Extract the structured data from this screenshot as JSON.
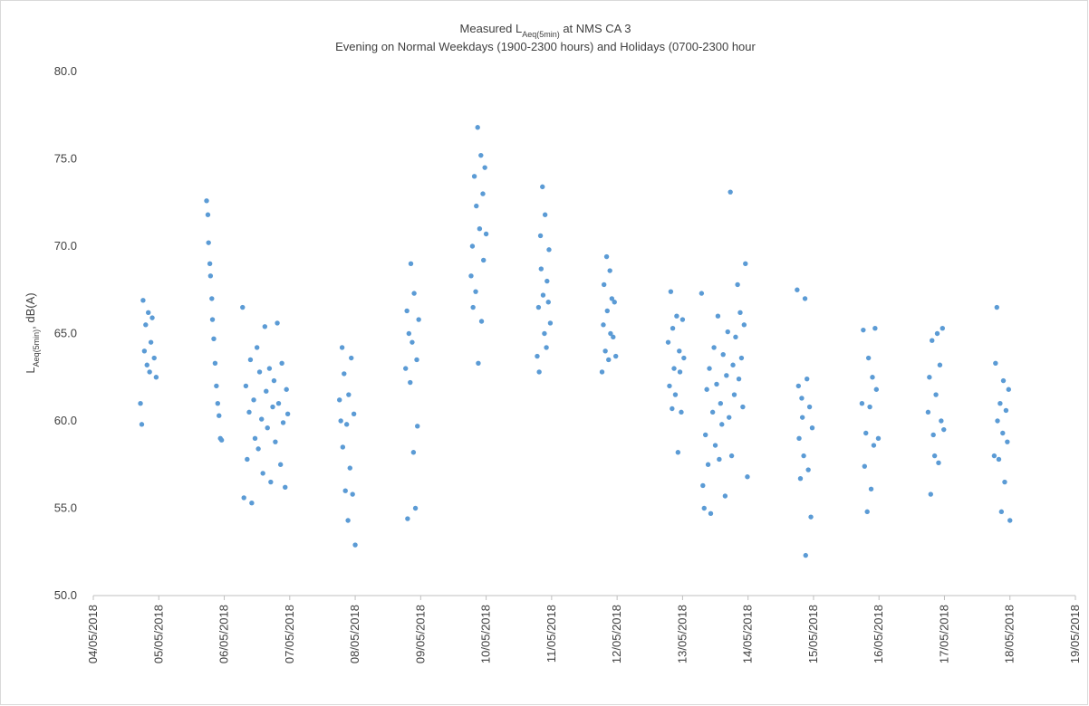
{
  "chart_data": {
    "type": "scatter",
    "title": {
      "text": "Measured L",
      "sub": "Aeq(5min)",
      "rest": " at NMS CA 3"
    },
    "subtitle": "Evening on Normal Weekdays (1900-2300 hours) and Holidays (0700-2300 hour",
    "ylabel": {
      "text": "L",
      "sub": "Aeq(5min)",
      "rest": ", dB(A)"
    },
    "color": "#5b9bd5",
    "grid": false,
    "xlim": [
      4,
      19
    ],
    "xticks": [
      {
        "value": 4,
        "label": "04/05/2018"
      },
      {
        "value": 5,
        "label": "05/05/2018"
      },
      {
        "value": 6,
        "label": "06/05/2018"
      },
      {
        "value": 7,
        "label": "07/05/2018"
      },
      {
        "value": 8,
        "label": "08/05/2018"
      },
      {
        "value": 9,
        "label": "09/05/2018"
      },
      {
        "value": 10,
        "label": "10/05/2018"
      },
      {
        "value": 11,
        "label": "11/05/2018"
      },
      {
        "value": 12,
        "label": "12/05/2018"
      },
      {
        "value": 13,
        "label": "13/05/2018"
      },
      {
        "value": 14,
        "label": "14/05/2018"
      },
      {
        "value": 15,
        "label": "15/05/2018"
      },
      {
        "value": 16,
        "label": "16/05/2018"
      },
      {
        "value": 17,
        "label": "17/05/2018"
      },
      {
        "value": 18,
        "label": "18/05/2018"
      },
      {
        "value": 19,
        "label": "19/05/2018"
      }
    ],
    "ylim": [
      50,
      80
    ],
    "yticks": [
      {
        "value": 50,
        "label": "50.0"
      },
      {
        "value": 55,
        "label": "55.0"
      },
      {
        "value": 60,
        "label": "60.0"
      },
      {
        "value": 65,
        "label": "65.0"
      },
      {
        "value": 70,
        "label": "70.0"
      },
      {
        "value": 75,
        "label": "75.0"
      },
      {
        "value": 80,
        "label": "80.0"
      }
    ],
    "x": [
      4.72,
      4.74,
      4.76,
      4.78,
      4.8,
      4.82,
      4.84,
      4.86,
      4.88,
      4.9,
      4.93,
      4.96,
      5.73,
      5.75,
      5.76,
      5.78,
      5.79,
      5.81,
      5.82,
      5.84,
      5.86,
      5.88,
      5.9,
      5.92,
      5.94,
      5.96,
      6.28,
      6.3,
      6.33,
      6.35,
      6.38,
      6.4,
      6.42,
      6.45,
      6.47,
      6.5,
      6.52,
      6.54,
      6.57,
      6.59,
      6.62,
      6.64,
      6.66,
      6.69,
      6.71,
      6.74,
      6.76,
      6.78,
      6.81,
      6.83,
      6.86,
      6.88,
      6.9,
      6.93,
      6.95,
      6.97,
      7.76,
      7.78,
      7.8,
      7.81,
      7.83,
      7.85,
      7.87,
      7.89,
      7.9,
      7.92,
      7.94,
      7.96,
      7.98,
      8.0,
      8.77,
      8.79,
      8.8,
      8.82,
      8.84,
      8.85,
      8.87,
      8.89,
      8.9,
      8.92,
      8.94,
      8.95,
      8.97,
      9.77,
      9.79,
      9.8,
      9.82,
      9.84,
      9.85,
      9.87,
      9.88,
      9.9,
      9.92,
      9.93,
      9.95,
      9.96,
      9.98,
      10.0,
      10.78,
      10.8,
      10.81,
      10.83,
      10.84,
      10.86,
      10.87,
      10.89,
      10.9,
      10.92,
      10.93,
      10.95,
      10.96,
      10.98,
      11.77,
      11.79,
      11.8,
      11.82,
      11.84,
      11.85,
      11.87,
      11.89,
      11.9,
      11.92,
      11.94,
      11.96,
      11.98,
      12.78,
      12.8,
      12.82,
      12.84,
      12.85,
      12.87,
      12.89,
      12.91,
      12.93,
      12.95,
      12.96,
      12.98,
      13.0,
      13.02,
      13.29,
      13.31,
      13.33,
      13.35,
      13.37,
      13.39,
      13.41,
      13.43,
      13.46,
      13.48,
      13.5,
      13.52,
      13.54,
      13.56,
      13.58,
      13.6,
      13.62,
      13.65,
      13.67,
      13.69,
      13.71,
      13.73,
      13.75,
      13.77,
      13.79,
      13.81,
      13.84,
      13.86,
      13.88,
      13.9,
      13.92,
      13.94,
      13.96,
      13.99,
      14.75,
      14.77,
      14.78,
      14.8,
      14.82,
      14.83,
      14.85,
      14.87,
      14.88,
      14.9,
      14.92,
      14.94,
      14.96,
      14.98,
      15.74,
      15.76,
      15.78,
      15.8,
      15.82,
      15.84,
      15.86,
      15.88,
      15.9,
      15.92,
      15.94,
      15.96,
      15.99,
      16.75,
      16.77,
      16.79,
      16.81,
      16.83,
      16.85,
      16.87,
      16.89,
      16.91,
      16.93,
      16.95,
      16.97,
      16.99,
      17.76,
      17.78,
      17.8,
      17.81,
      17.83,
      17.85,
      17.87,
      17.89,
      17.9,
      17.92,
      17.94,
      17.96,
      17.98,
      18.0
    ],
    "values": [
      61.0,
      59.8,
      66.9,
      64.0,
      65.5,
      63.2,
      66.2,
      62.8,
      64.5,
      65.9,
      63.6,
      62.5,
      72.6,
      71.8,
      70.2,
      69.0,
      68.3,
      67.0,
      65.8,
      64.7,
      63.3,
      62.0,
      61.0,
      60.3,
      59.0,
      58.9,
      66.5,
      55.6,
      62.0,
      57.8,
      60.5,
      63.5,
      55.3,
      61.2,
      59.0,
      64.2,
      58.4,
      62.8,
      60.1,
      57.0,
      65.4,
      61.7,
      59.6,
      63.0,
      56.5,
      60.8,
      62.3,
      58.8,
      65.6,
      61.0,
      57.5,
      63.3,
      59.9,
      56.2,
      61.8,
      60.4,
      61.2,
      60.0,
      64.2,
      58.5,
      62.7,
      56.0,
      59.8,
      54.3,
      61.5,
      57.3,
      63.6,
      55.8,
      60.4,
      52.9,
      63.0,
      66.3,
      54.4,
      65.0,
      62.2,
      69.0,
      64.5,
      58.2,
      67.3,
      55.0,
      63.5,
      59.7,
      65.8,
      68.3,
      70.0,
      66.5,
      74.0,
      67.4,
      72.3,
      76.8,
      63.3,
      71.0,
      75.2,
      65.7,
      73.0,
      69.2,
      74.5,
      70.7,
      63.7,
      66.5,
      62.8,
      70.6,
      68.7,
      73.4,
      67.2,
      65.0,
      71.8,
      64.2,
      68.0,
      66.8,
      69.8,
      65.6,
      62.8,
      65.5,
      67.8,
      64.0,
      69.4,
      66.3,
      63.5,
      68.6,
      65.0,
      67.0,
      64.8,
      66.8,
      63.7,
      64.5,
      62.0,
      67.4,
      60.7,
      65.3,
      63.0,
      61.5,
      66.0,
      58.2,
      64.0,
      62.8,
      60.5,
      65.8,
      63.6,
      67.3,
      56.3,
      55.0,
      59.2,
      61.8,
      57.5,
      63.0,
      54.7,
      60.5,
      64.2,
      58.6,
      62.1,
      66.0,
      57.8,
      61.0,
      59.8,
      63.8,
      55.7,
      62.6,
      65.1,
      60.2,
      73.1,
      58.0,
      63.2,
      61.5,
      64.8,
      67.8,
      62.4,
      66.2,
      63.6,
      60.8,
      65.5,
      69.0,
      56.8,
      67.5,
      62.0,
      59.0,
      56.7,
      61.3,
      60.2,
      58.0,
      67.0,
      52.3,
      62.4,
      57.2,
      60.8,
      54.5,
      59.6,
      61.0,
      65.2,
      57.4,
      59.3,
      54.8,
      63.6,
      60.8,
      56.1,
      62.5,
      58.6,
      65.3,
      61.8,
      59.0,
      60.5,
      62.5,
      55.8,
      64.6,
      59.2,
      58.0,
      61.5,
      65.0,
      57.6,
      63.2,
      60.0,
      65.3,
      59.5,
      58.0,
      63.3,
      66.5,
      60.0,
      57.8,
      61.0,
      54.8,
      59.3,
      62.3,
      56.5,
      60.6,
      58.8,
      61.8,
      54.3
    ]
  }
}
